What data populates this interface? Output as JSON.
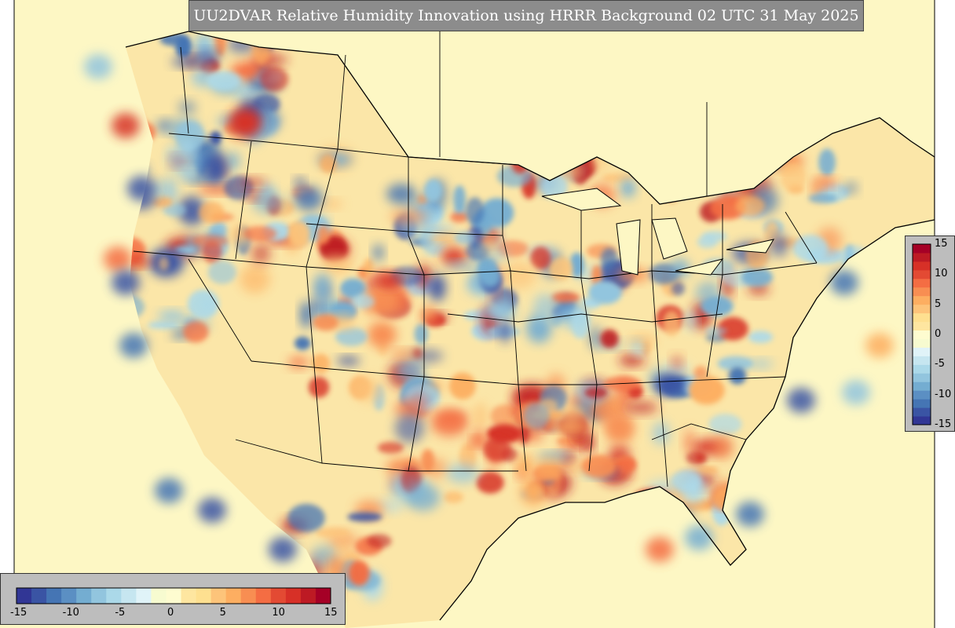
{
  "title": "UU2DVAR Relative Humidity Innovation using HRRR Background 02 UTC 31 May 2025",
  "colorbar": {
    "ticks": [
      "15",
      "10",
      "5",
      "0",
      "-5",
      "-10",
      "-15"
    ],
    "ticks_horizontal": [
      "-15",
      "-10",
      "-5",
      "0",
      "5",
      "10",
      "15"
    ],
    "range": [
      -15,
      15
    ],
    "colors": [
      "#313695",
      "#3a54a4",
      "#4575b4",
      "#5b8fc3",
      "#74add1",
      "#92c5de",
      "#abd9e9",
      "#c6e6f0",
      "#e0f3f8",
      "#f7fbd0",
      "#fefcd0",
      "#fee6a0",
      "#fee090",
      "#fdc47a",
      "#fdae61",
      "#f88e52",
      "#f46d43",
      "#e34a33",
      "#d73027",
      "#bd1a24",
      "#a50026"
    ]
  },
  "legend_colors": {
    "ocean": "#fdf7c4",
    "border": "#000000",
    "dry": "#3a54a4",
    "moist": "#b2182b"
  }
}
